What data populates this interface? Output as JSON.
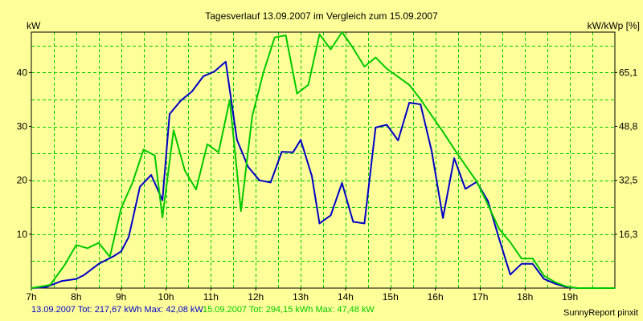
{
  "chart_data": {
    "type": "line",
    "title": "Tagesverlauf 13.09.2007 im Vergleich zum 15.09.2007",
    "ylabel_left": "kW",
    "ylabel_right": "kW/kWp [%]",
    "xlim": [
      7,
      20
    ],
    "ylim": [
      0,
      47.5
    ],
    "y_ticks": [
      10,
      20,
      30,
      40
    ],
    "y_right_ticks": [
      {
        "at": 10,
        "label": "16,3"
      },
      {
        "at": 20,
        "label": "32,5"
      },
      {
        "at": 30,
        "label": "48,8"
      },
      {
        "at": 40,
        "label": "65,1"
      }
    ],
    "x_ticks": [
      {
        "at": 7,
        "label": "7h"
      },
      {
        "at": 8,
        "label": "8h"
      },
      {
        "at": 9,
        "label": "9h"
      },
      {
        "at": 10,
        "label": "10h"
      },
      {
        "at": 11,
        "label": "11h"
      },
      {
        "at": 12,
        "label": "12h"
      },
      {
        "at": 13,
        "label": "13h"
      },
      {
        "at": 14,
        "label": "14h"
      },
      {
        "at": 15,
        "label": "15h"
      },
      {
        "at": 16,
        "label": "16h"
      },
      {
        "at": 17,
        "label": "17h"
      },
      {
        "at": 18,
        "label": "18h"
      },
      {
        "at": 19,
        "label": "19h"
      }
    ],
    "grid": true,
    "series": [
      {
        "name": "13.09.2007",
        "color": "#0000c8",
        "points": [
          [
            7.0,
            0.0
          ],
          [
            7.33,
            0.2
          ],
          [
            7.67,
            1.3
          ],
          [
            8.0,
            1.7
          ],
          [
            8.17,
            2.4
          ],
          [
            8.5,
            4.5
          ],
          [
            8.83,
            5.9
          ],
          [
            9.0,
            6.8
          ],
          [
            9.17,
            9.5
          ],
          [
            9.42,
            18.8
          ],
          [
            9.67,
            21.0
          ],
          [
            9.92,
            16.3
          ],
          [
            10.08,
            32.3
          ],
          [
            10.33,
            34.8
          ],
          [
            10.58,
            36.5
          ],
          [
            10.83,
            39.3
          ],
          [
            11.08,
            40.2
          ],
          [
            11.33,
            42.0
          ],
          [
            11.58,
            27.5
          ],
          [
            11.83,
            22.5
          ],
          [
            12.08,
            20.0
          ],
          [
            12.33,
            19.6
          ],
          [
            12.58,
            25.3
          ],
          [
            12.83,
            25.2
          ],
          [
            13.0,
            27.5
          ],
          [
            13.25,
            20.8
          ],
          [
            13.42,
            12.0
          ],
          [
            13.67,
            13.5
          ],
          [
            13.92,
            19.5
          ],
          [
            14.17,
            12.3
          ],
          [
            14.42,
            12.0
          ],
          [
            14.67,
            29.8
          ],
          [
            14.92,
            30.3
          ],
          [
            15.17,
            27.4
          ],
          [
            15.42,
            34.4
          ],
          [
            15.67,
            34.1
          ],
          [
            15.92,
            25.4
          ],
          [
            16.17,
            13.0
          ],
          [
            16.42,
            24.1
          ],
          [
            16.67,
            18.4
          ],
          [
            16.92,
            19.7
          ],
          [
            17.17,
            16.2
          ],
          [
            17.42,
            9.2
          ],
          [
            17.67,
            2.5
          ],
          [
            17.92,
            4.5
          ],
          [
            18.17,
            4.5
          ],
          [
            18.42,
            1.7
          ],
          [
            18.67,
            0.8
          ],
          [
            18.92,
            0.2
          ],
          [
            19.17,
            0.0
          ],
          [
            20.0,
            0.0
          ]
        ]
      },
      {
        "name": "15.09.2007",
        "color": "#00c800",
        "points": [
          [
            7.0,
            0.0
          ],
          [
            7.42,
            0.6
          ],
          [
            7.75,
            4.4
          ],
          [
            8.0,
            8.0
          ],
          [
            8.25,
            7.4
          ],
          [
            8.5,
            8.4
          ],
          [
            8.75,
            5.8
          ],
          [
            9.0,
            14.8
          ],
          [
            9.25,
            19.5
          ],
          [
            9.5,
            25.7
          ],
          [
            9.75,
            24.6
          ],
          [
            9.92,
            13.1
          ],
          [
            10.17,
            29.3
          ],
          [
            10.42,
            21.8
          ],
          [
            10.67,
            18.3
          ],
          [
            10.92,
            26.7
          ],
          [
            11.17,
            25.2
          ],
          [
            11.42,
            34.9
          ],
          [
            11.67,
            14.3
          ],
          [
            11.92,
            31.9
          ],
          [
            12.17,
            40.0
          ],
          [
            12.42,
            46.5
          ],
          [
            12.67,
            46.9
          ],
          [
            12.92,
            36.1
          ],
          [
            13.17,
            37.7
          ],
          [
            13.42,
            47.1
          ],
          [
            13.67,
            44.3
          ],
          [
            13.92,
            47.5
          ],
          [
            14.17,
            44.5
          ],
          [
            14.42,
            41.1
          ],
          [
            14.67,
            42.8
          ],
          [
            14.92,
            40.7
          ],
          [
            15.17,
            39.2
          ],
          [
            15.42,
            37.7
          ],
          [
            15.67,
            35.0
          ],
          [
            15.92,
            32.0
          ],
          [
            16.17,
            29.0
          ],
          [
            16.42,
            25.8
          ],
          [
            16.67,
            22.8
          ],
          [
            16.92,
            19.8
          ],
          [
            17.17,
            15.5
          ],
          [
            17.42,
            11.0
          ],
          [
            17.67,
            8.5
          ],
          [
            17.92,
            5.5
          ],
          [
            18.17,
            5.5
          ],
          [
            18.42,
            2.3
          ],
          [
            18.67,
            1.1
          ],
          [
            18.92,
            0.3
          ],
          [
            19.17,
            0.0
          ],
          [
            20.0,
            0.0
          ]
        ]
      }
    ]
  },
  "footer": {
    "series1_summary": "13.09.2007 Tot: 217,67 kWh Max: 42,08 kW",
    "series2_summary": "15.09.2007 Tot: 294,15 kWh Max: 47,48 kW",
    "credit": "SunnyReport pinxit"
  },
  "colors": {
    "background": "#ffff99",
    "grid": "#00c800",
    "axis": "#000000"
  }
}
